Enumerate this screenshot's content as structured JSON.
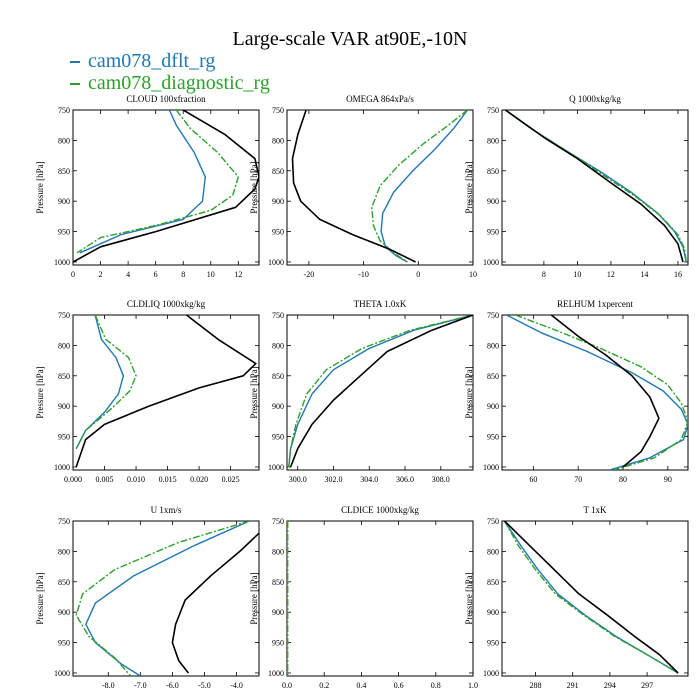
{
  "title": "Large-scale VAR at90E,-10N",
  "legend": [
    {
      "name": "cam078_dflt_rg",
      "color": "#1f77b4"
    },
    {
      "name": "cam078_diagnostic_rg",
      "color": "#2ca02c"
    }
  ],
  "colors": {
    "dflt": "#1f77b4",
    "diag": "#2ca02c",
    "obs": "#000000"
  },
  "chart_data": [
    {
      "type": "line",
      "title": "CLOUD  100xfraction",
      "ylabel": "Pressure [hPa]",
      "xlim": [
        0,
        13.5
      ],
      "ylim": [
        1005,
        750
      ],
      "xticks": [
        0,
        2,
        4,
        6,
        8,
        10,
        12
      ],
      "xtick_labels": [
        "0",
        "2",
        "4",
        "6",
        "8",
        "10",
        "12"
      ],
      "yticks": [
        750,
        800,
        850,
        900,
        950,
        1000
      ],
      "ytick_labels": [
        "750",
        "800",
        "850",
        "900",
        "950",
        "1000"
      ],
      "series": [
        {
          "name": "cam078_dflt_rg",
          "style": "solid",
          "x": [
            7.0,
            7.5,
            8.8,
            9.6,
            9.4,
            8.0,
            3.5,
            0.5
          ],
          "y": [
            750,
            775,
            820,
            860,
            900,
            930,
            955,
            985
          ]
        },
        {
          "name": "cam078_diagnostic_rg",
          "style": "dashdot",
          "x": [
            7.5,
            8.5,
            10.5,
            12.0,
            11.6,
            10.0,
            6.0,
            2.0,
            0.3
          ],
          "y": [
            750,
            780,
            820,
            860,
            890,
            915,
            940,
            960,
            985
          ]
        },
        {
          "name": "",
          "style": "solid",
          "color": "obs",
          "x": [
            8.0,
            11.0,
            13.2,
            13.5,
            13.2,
            11.8,
            6.0,
            2.0,
            0.0
          ],
          "y": [
            750,
            790,
            830,
            860,
            880,
            910,
            950,
            975,
            1000
          ]
        }
      ]
    },
    {
      "type": "line",
      "title": "OMEGA  864xPa/s",
      "ylabel": "Pressure [hPa]",
      "xlim": [
        -24,
        10
      ],
      "ylim": [
        1005,
        750
      ],
      "xticks": [
        -20,
        -10,
        0,
        10
      ],
      "xtick_labels": [
        "-20",
        "-10",
        "0",
        "10"
      ],
      "yticks": [
        750,
        800,
        850,
        900,
        950,
        1000
      ],
      "ytick_labels": [
        "750",
        "800",
        "850",
        "900",
        "950",
        "1000"
      ],
      "series": [
        {
          "name": "cam078_dflt_rg",
          "style": "solid",
          "x": [
            9.0,
            6.5,
            3.0,
            -1.0,
            -4.5,
            -6.5,
            -6.8,
            -6.0,
            -4.0,
            -2.0
          ],
          "y": [
            750,
            780,
            815,
            850,
            885,
            920,
            950,
            975,
            990,
            1000
          ]
        },
        {
          "name": "cam078_diagnostic_rg",
          "style": "dashdot",
          "x": [
            9.0,
            5.5,
            1.0,
            -3.5,
            -7.0,
            -8.5,
            -8.2,
            -7.0,
            -4.5,
            -2.0
          ],
          "y": [
            750,
            775,
            805,
            840,
            875,
            910,
            940,
            965,
            985,
            1000
          ]
        },
        {
          "name": "",
          "style": "solid",
          "color": "obs",
          "x": [
            -20.5,
            -22.0,
            -23.0,
            -22.8,
            -21.5,
            -18.0,
            -12.0,
            -5.0,
            -0.5
          ],
          "y": [
            750,
            790,
            830,
            870,
            900,
            930,
            955,
            980,
            1000
          ]
        }
      ]
    },
    {
      "type": "line",
      "title": "Q  1000xkg/kg",
      "ylabel": "Pressure [hPa]",
      "xlim": [
        5.5,
        16.6
      ],
      "ylim": [
        1005,
        750
      ],
      "xticks": [
        8,
        10,
        12,
        14,
        16
      ],
      "xtick_labels": [
        "8",
        "10",
        "12",
        "14",
        "16"
      ],
      "yticks": [
        750,
        800,
        850,
        900,
        950,
        1000
      ],
      "ytick_labels": [
        "750",
        "800",
        "850",
        "900",
        "950",
        "1000"
      ],
      "series": [
        {
          "name": "cam078_dflt_rg",
          "style": "solid",
          "x": [
            5.7,
            7.2,
            9.2,
            11.3,
            13.2,
            14.8,
            15.8,
            16.3,
            16.5
          ],
          "y": [
            750,
            780,
            815,
            850,
            885,
            920,
            950,
            975,
            1000
          ]
        },
        {
          "name": "cam078_diagnostic_rg",
          "style": "dashdot",
          "x": [
            5.7,
            7.5,
            9.8,
            11.8,
            13.5,
            15.0,
            16.0,
            16.4,
            16.5
          ],
          "y": [
            750,
            785,
            825,
            862,
            893,
            925,
            955,
            978,
            1000
          ]
        },
        {
          "name": "",
          "style": "solid",
          "color": "obs",
          "x": [
            5.7,
            8.0,
            10.0,
            12.0,
            13.8,
            15.2,
            16.0,
            16.3
          ],
          "y": [
            750,
            795,
            830,
            870,
            905,
            940,
            970,
            1000
          ]
        }
      ]
    },
    {
      "type": "line",
      "title": "CLDLIQ  1000xkg/kg",
      "ylabel": "Pressure [hPa]",
      "xlim": [
        0,
        0.0295
      ],
      "ylim": [
        1005,
        750
      ],
      "xticks": [
        0,
        0.005,
        0.01,
        0.015,
        0.02,
        0.025
      ],
      "xtick_labels": [
        "0.000",
        "0.005",
        "0.010",
        "0.015",
        "0.020",
        "0.025"
      ],
      "yticks": [
        750,
        800,
        850,
        900,
        950,
        1000
      ],
      "ytick_labels": [
        "750",
        "800",
        "850",
        "900",
        "950",
        "1000"
      ],
      "series": [
        {
          "name": "cam078_dflt_rg",
          "style": "solid",
          "x": [
            0.0035,
            0.0045,
            0.0068,
            0.008,
            0.0072,
            0.005,
            0.002,
            0.0005
          ],
          "y": [
            750,
            790,
            820,
            850,
            880,
            910,
            940,
            970
          ]
        },
        {
          "name": "cam078_diagnostic_rg",
          "style": "dashdot",
          "x": [
            0.0035,
            0.0052,
            0.0088,
            0.01,
            0.009,
            0.006,
            0.002,
            0.0005
          ],
          "y": [
            750,
            790,
            820,
            850,
            875,
            905,
            940,
            970
          ]
        },
        {
          "name": "",
          "style": "solid",
          "color": "obs",
          "x": [
            0.018,
            0.023,
            0.029,
            0.027,
            0.02,
            0.012,
            0.005,
            0.002,
            0.0005
          ],
          "y": [
            750,
            790,
            830,
            850,
            870,
            900,
            930,
            955,
            1000
          ]
        }
      ]
    },
    {
      "type": "line",
      "title": "THETA  1.0xK",
      "ylabel": "Pressure [hPa]",
      "xlim": [
        299.4,
        309.8
      ],
      "ylim": [
        1005,
        750
      ],
      "xticks": [
        300,
        302,
        304,
        306,
        308
      ],
      "xtick_labels": [
        "300.0",
        "302.0",
        "304.0",
        "306.0",
        "308.0"
      ],
      "yticks": [
        750,
        800,
        850,
        900,
        950,
        1000
      ],
      "ytick_labels": [
        "750",
        "800",
        "850",
        "900",
        "950",
        "1000"
      ],
      "series": [
        {
          "name": "cam078_dflt_rg",
          "style": "solid",
          "x": [
            309.8,
            306.5,
            304.0,
            302.0,
            300.8,
            300.0,
            299.6,
            299.5
          ],
          "y": [
            750,
            775,
            805,
            840,
            880,
            930,
            970,
            1000
          ]
        },
        {
          "name": "cam078_diagnostic_rg",
          "style": "dashdot",
          "x": [
            309.8,
            306.3,
            303.6,
            301.6,
            300.5,
            299.9,
            299.6,
            299.5
          ],
          "y": [
            750,
            775,
            805,
            840,
            880,
            930,
            970,
            1000
          ]
        },
        {
          "name": "",
          "style": "solid",
          "color": "obs",
          "x": [
            309.8,
            307.5,
            305.0,
            303.5,
            302.0,
            300.8,
            300.0,
            299.6
          ],
          "y": [
            750,
            775,
            810,
            850,
            890,
            930,
            970,
            1000
          ]
        }
      ]
    },
    {
      "type": "line",
      "title": "RELHUM  1xpercent",
      "ylabel": "Pressure [hPa]",
      "xlim": [
        53,
        94.5
      ],
      "ylim": [
        1005,
        750
      ],
      "xticks": [
        60,
        70,
        80,
        90
      ],
      "xtick_labels": [
        "60",
        "70",
        "80",
        "90"
      ],
      "yticks": [
        750,
        800,
        850,
        900,
        950,
        1000
      ],
      "ytick_labels": [
        "750",
        "800",
        "850",
        "900",
        "950",
        "1000"
      ],
      "series": [
        {
          "name": "cam078_dflt_rg",
          "style": "solid",
          "x": [
            54,
            62,
            72,
            82,
            89,
            93,
            94.5,
            93.5,
            86,
            77
          ],
          "y": [
            750,
            780,
            810,
            845,
            875,
            905,
            930,
            955,
            985,
            1005
          ]
        },
        {
          "name": "cam078_diagnostic_rg",
          "style": "dashdot",
          "x": [
            56,
            65,
            75,
            84,
            90,
            93,
            94.5,
            93.0,
            87,
            78
          ],
          "y": [
            750,
            775,
            805,
            835,
            865,
            895,
            925,
            955,
            985,
            1005
          ]
        },
        {
          "name": "",
          "style": "solid",
          "color": "obs",
          "x": [
            64,
            70,
            76,
            82,
            86,
            88,
            86,
            84,
            80
          ],
          "y": [
            750,
            785,
            815,
            850,
            885,
            920,
            950,
            975,
            1000
          ]
        }
      ]
    },
    {
      "type": "line",
      "title": "U  1xm/s",
      "ylabel": "Pressure [hPa]",
      "xlim": [
        -9.1,
        -3.3
      ],
      "ylim": [
        1005,
        750
      ],
      "xticks": [
        -8,
        -7,
        -6,
        -5,
        -4
      ],
      "xtick_labels": [
        "-8.0",
        "-7.0",
        "-6.0",
        "-5.0",
        "-4.0"
      ],
      "yticks": [
        750,
        800,
        850,
        900,
        950,
        1000
      ],
      "ytick_labels": [
        "750",
        "800",
        "850",
        "900",
        "950",
        "1000"
      ],
      "series": [
        {
          "name": "cam078_dflt_rg",
          "style": "solid",
          "x": [
            -3.6,
            -5.3,
            -7.2,
            -8.4,
            -8.7,
            -8.4,
            -7.6,
            -7.0
          ],
          "y": [
            750,
            790,
            840,
            885,
            920,
            950,
            985,
            1005
          ]
        },
        {
          "name": "cam078_diagnostic_rg",
          "style": "dashdot",
          "x": [
            -3.6,
            -5.8,
            -7.8,
            -8.8,
            -9.0,
            -8.6,
            -7.8,
            -7.3
          ],
          "y": [
            750,
            785,
            830,
            870,
            905,
            940,
            975,
            1005
          ]
        },
        {
          "name": "",
          "style": "solid",
          "color": "obs",
          "x": [
            -3.3,
            -3.9,
            -4.8,
            -5.6,
            -5.9,
            -6.0,
            -5.8,
            -5.5
          ],
          "y": [
            770,
            800,
            840,
            880,
            920,
            950,
            980,
            1000
          ]
        }
      ]
    },
    {
      "type": "line",
      "title": "CLDICE  1000xkg/kg",
      "ylabel": "Pressure [hPa]",
      "xlim": [
        0,
        1
      ],
      "ylim": [
        1005,
        750
      ],
      "xticks": [
        0,
        0.2,
        0.4,
        0.6,
        0.8,
        1.0
      ],
      "xtick_labels": [
        "0.0",
        "0.2",
        "0.4",
        "0.6",
        "0.8",
        "1.0"
      ],
      "yticks": [
        750,
        800,
        850,
        900,
        950,
        1000
      ],
      "ytick_labels": [
        "750",
        "800",
        "850",
        "900",
        "950",
        "1000"
      ],
      "series": [
        {
          "name": "cam078_dflt_rg",
          "style": "solid",
          "x": [
            0,
            0
          ],
          "y": [
            750,
            1005
          ]
        },
        {
          "name": "cam078_diagnostic_rg",
          "style": "dashdot",
          "x": [
            0.004,
            0.004
          ],
          "y": [
            750,
            1005
          ]
        }
      ]
    },
    {
      "type": "line",
      "title": "T  1xK",
      "ylabel": "Pressure [hPa]",
      "xlim": [
        285.3,
        300.3
      ],
      "ylim": [
        1005,
        750
      ],
      "xticks": [
        288,
        291,
        294,
        297
      ],
      "xtick_labels": [
        "288",
        "291",
        "294",
        "297"
      ],
      "yticks": [
        750,
        800,
        850,
        900,
        950,
        1000
      ],
      "ytick_labels": [
        "750",
        "800",
        "850",
        "900",
        "950",
        "1000"
      ],
      "series": [
        {
          "name": "cam078_dflt_rg",
          "style": "solid",
          "x": [
            285.5,
            286.8,
            288.2,
            289.8,
            292.0,
            294.5,
            297.0,
            299.5
          ],
          "y": [
            750,
            790,
            830,
            870,
            905,
            940,
            970,
            1000
          ]
        },
        {
          "name": "cam078_diagnostic_rg",
          "style": "dashdot",
          "x": [
            285.5,
            286.6,
            288.0,
            289.6,
            291.9,
            294.4,
            297.0,
            299.5
          ],
          "y": [
            750,
            790,
            830,
            870,
            905,
            940,
            970,
            1000
          ]
        },
        {
          "name": "",
          "style": "solid",
          "color": "obs",
          "x": [
            285.5,
            287.5,
            289.5,
            291.5,
            293.8,
            296.0,
            298.0,
            299.5
          ],
          "y": [
            750,
            790,
            830,
            870,
            905,
            940,
            970,
            1000
          ]
        }
      ]
    }
  ]
}
